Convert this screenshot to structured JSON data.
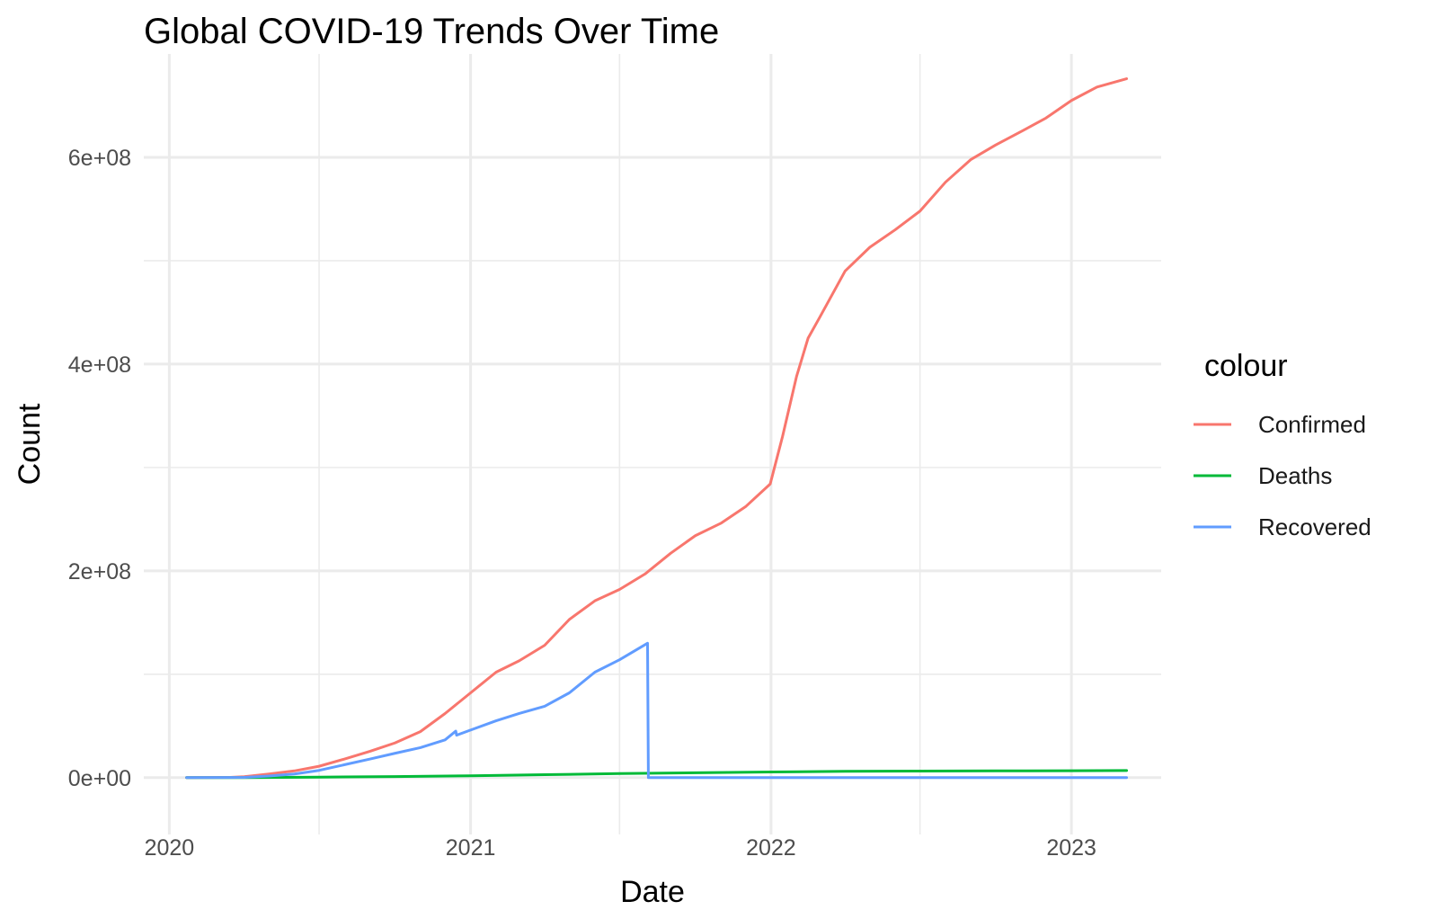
{
  "chart_data": {
    "type": "line",
    "title": "Global COVID-19 Trends Over Time",
    "xlabel": "Date",
    "ylabel": "Count",
    "x_scale": "date",
    "xlim": [
      "2019-12-01",
      "2023-04-20"
    ],
    "ylim": [
      -55000000,
      700000000
    ],
    "x_ticks": [
      {
        "value": "2020-01-01",
        "label": "2020"
      },
      {
        "value": "2021-01-01",
        "label": "2021"
      },
      {
        "value": "2022-01-01",
        "label": "2022"
      },
      {
        "value": "2023-01-01",
        "label": "2023"
      }
    ],
    "x_minor_ticks": [
      "2020-07-01",
      "2021-07-01",
      "2022-07-01"
    ],
    "y_ticks": [
      {
        "value": 0,
        "label": "0e+00"
      },
      {
        "value": 200000000,
        "label": "2e+08"
      },
      {
        "value": 400000000,
        "label": "4e+08"
      },
      {
        "value": 600000000,
        "label": "6e+08"
      }
    ],
    "y_minor_ticks": [
      100000000,
      300000000,
      500000000
    ],
    "grid": true,
    "legend": {
      "title": "colour",
      "position": "right"
    },
    "series": [
      {
        "name": "Confirmed",
        "color": "#F8766D",
        "points": [
          [
            "2020-01-22",
            0
          ],
          [
            "2020-03-15",
            200000
          ],
          [
            "2020-04-01",
            900000
          ],
          [
            "2020-05-01",
            3500000
          ],
          [
            "2020-06-01",
            6500000
          ],
          [
            "2020-07-01",
            11000000
          ],
          [
            "2020-08-01",
            18000000
          ],
          [
            "2020-09-01",
            25500000
          ],
          [
            "2020-10-01",
            33500000
          ],
          [
            "2020-11-01",
            44500000
          ],
          [
            "2020-12-01",
            62000000
          ],
          [
            "2021-01-01",
            82000000
          ],
          [
            "2021-02-01",
            102000000
          ],
          [
            "2021-03-01",
            113000000
          ],
          [
            "2021-04-01",
            128000000
          ],
          [
            "2021-05-01",
            153000000
          ],
          [
            "2021-06-01",
            171000000
          ],
          [
            "2021-07-01",
            182000000
          ],
          [
            "2021-08-01",
            197000000
          ],
          [
            "2021-09-01",
            217000000
          ],
          [
            "2021-10-01",
            234000000
          ],
          [
            "2021-11-01",
            246000000
          ],
          [
            "2021-12-01",
            262000000
          ],
          [
            "2021-12-31",
            284000000
          ],
          [
            "2022-01-15",
            330000000
          ],
          [
            "2022-02-01",
            388000000
          ],
          [
            "2022-02-15",
            425000000
          ],
          [
            "2022-03-01",
            445000000
          ],
          [
            "2022-04-01",
            490000000
          ],
          [
            "2022-05-01",
            513000000
          ],
          [
            "2022-06-01",
            530000000
          ],
          [
            "2022-07-01",
            548000000
          ],
          [
            "2022-08-01",
            576000000
          ],
          [
            "2022-09-01",
            598000000
          ],
          [
            "2022-10-01",
            612000000
          ],
          [
            "2022-11-01",
            625000000
          ],
          [
            "2022-12-01",
            638000000
          ],
          [
            "2023-01-01",
            655000000
          ],
          [
            "2023-02-01",
            668000000
          ],
          [
            "2023-03-09",
            676000000
          ]
        ]
      },
      {
        "name": "Deaths",
        "color": "#00BA38",
        "points": [
          [
            "2020-01-22",
            0
          ],
          [
            "2020-04-01",
            50000
          ],
          [
            "2020-07-01",
            500000
          ],
          [
            "2020-10-01",
            1000000
          ],
          [
            "2021-01-01",
            1800000
          ],
          [
            "2021-04-01",
            2800000
          ],
          [
            "2021-07-01",
            3900000
          ],
          [
            "2021-10-01",
            4700000
          ],
          [
            "2022-01-01",
            5400000
          ],
          [
            "2022-04-01",
            6100000
          ],
          [
            "2022-07-01",
            6300000
          ],
          [
            "2022-10-01",
            6500000
          ],
          [
            "2023-01-01",
            6650000
          ],
          [
            "2023-03-09",
            6880000
          ]
        ]
      },
      {
        "name": "Recovered",
        "color": "#619CFF",
        "points": [
          [
            "2020-01-22",
            0
          ],
          [
            "2020-04-01",
            200000
          ],
          [
            "2020-05-01",
            1500000
          ],
          [
            "2020-06-01",
            3500000
          ],
          [
            "2020-07-01",
            7000000
          ],
          [
            "2020-08-01",
            12500000
          ],
          [
            "2020-09-01",
            18000000
          ],
          [
            "2020-10-01",
            23500000
          ],
          [
            "2020-11-01",
            29000000
          ],
          [
            "2020-12-01",
            36500000
          ],
          [
            "2020-12-14",
            45000000
          ],
          [
            "2020-12-15",
            41000000
          ],
          [
            "2021-01-01",
            46000000
          ],
          [
            "2021-02-01",
            55000000
          ],
          [
            "2021-03-01",
            62000000
          ],
          [
            "2021-04-01",
            69000000
          ],
          [
            "2021-05-01",
            82000000
          ],
          [
            "2021-06-01",
            102000000
          ],
          [
            "2021-07-01",
            114000000
          ],
          [
            "2021-08-04",
            130000000
          ],
          [
            "2021-08-05",
            0
          ],
          [
            "2023-03-09",
            0
          ]
        ]
      }
    ]
  }
}
